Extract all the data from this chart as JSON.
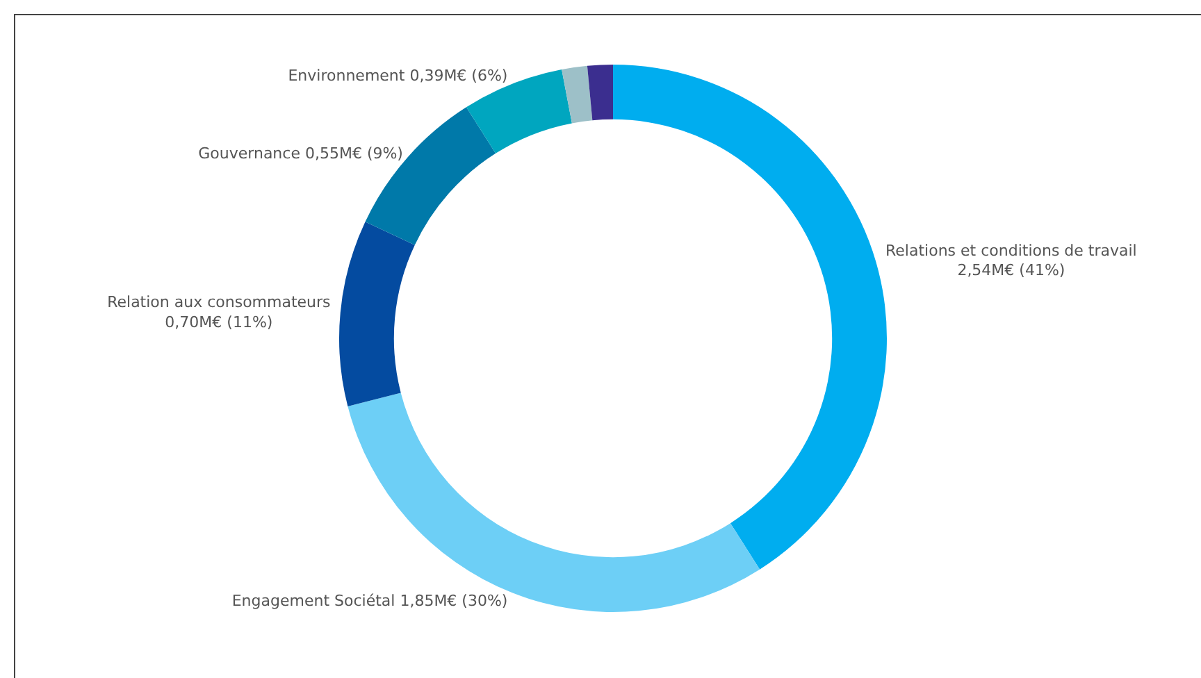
{
  "chart_data": {
    "type": "donut",
    "categories": [
      "Relations et conditions de travail",
      "Engagement Sociétal",
      "Relation aux consommateurs",
      "Gouvernance",
      "Environnement",
      null,
      null
    ],
    "values": [
      41,
      30,
      11,
      9,
      6,
      1.5,
      1.5
    ],
    "value_labels": [
      "2,54M€ (41%)",
      "1,85M€ (30%)",
      "0,70M€ (11%)",
      "0,55M€ (9%)",
      "0,39M€ (6%)",
      null,
      null
    ],
    "colors": [
      "#00adef",
      "#6dcff6",
      "#044ba0",
      "#0079a9",
      "#00a6bf",
      "#9dc0c8",
      "#3b2e8f"
    ],
    "legend": false
  }
}
